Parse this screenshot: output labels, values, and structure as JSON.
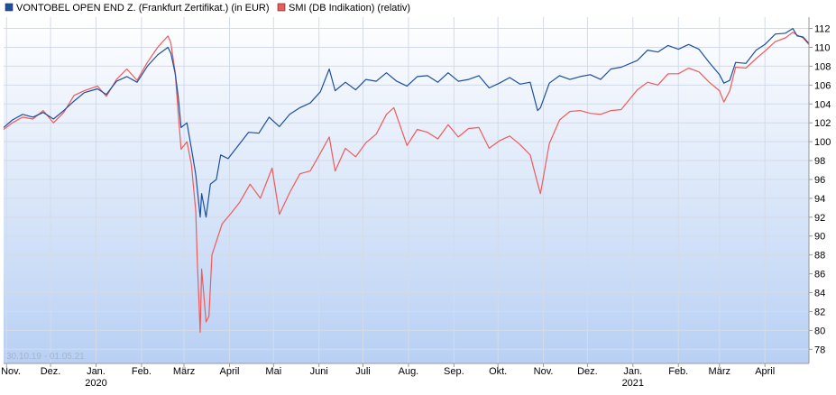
{
  "chart_data": {
    "type": "line",
    "legend": [
      {
        "name": "VONTOBEL OPEN END Z. (Frankfurt Zertifikat.) (in EUR)",
        "color": "#1c4fa1"
      },
      {
        "name": "SMI (DB Indikation) (relativ)",
        "color": "#f05a5a"
      }
    ],
    "date_range": "30.10.19 - 01.05.21",
    "ylim": [
      76.5,
      113.2
    ],
    "yticks": [
      78,
      80,
      82,
      84,
      86,
      88,
      90,
      92,
      94,
      96,
      98,
      100,
      102,
      104,
      106,
      108,
      110,
      112
    ],
    "xlim": [
      "2019-10-30",
      "2021-05-01"
    ],
    "xticks": [
      {
        "label": "Nov.",
        "date": "2019-11-01"
      },
      {
        "label": "Dez.",
        "date": "2019-12-01"
      },
      {
        "label": "Jan.",
        "date": "2020-01-01",
        "year": "2020"
      },
      {
        "label": "Feb.",
        "date": "2020-02-01"
      },
      {
        "label": "März",
        "date": "2020-03-01"
      },
      {
        "label": "April",
        "date": "2020-04-01"
      },
      {
        "label": "Mai",
        "date": "2020-05-01"
      },
      {
        "label": "Juni",
        "date": "2020-06-01"
      },
      {
        "label": "Juli",
        "date": "2020-07-01"
      },
      {
        "label": "Aug.",
        "date": "2020-08-01"
      },
      {
        "label": "Sep.",
        "date": "2020-09-01"
      },
      {
        "label": "Okt.",
        "date": "2020-10-01"
      },
      {
        "label": "Nov.",
        "date": "2020-11-01"
      },
      {
        "label": "Dez.",
        "date": "2020-12-01"
      },
      {
        "label": "Jan.",
        "date": "2021-01-01",
        "year": "2021"
      },
      {
        "label": "Feb.",
        "date": "2021-02-01"
      },
      {
        "label": "März",
        "date": "2021-03-01"
      },
      {
        "label": "April",
        "date": "2021-04-01"
      }
    ],
    "series": [
      {
        "name": "VONTOBEL OPEN END Z. (Frankfurt Zertifikat.) (in EUR)",
        "color": "#1c4fa1",
        "points": [
          [
            "2019-10-30",
            101.5
          ],
          [
            "2019-11-05",
            102.3
          ],
          [
            "2019-11-12",
            102.9
          ],
          [
            "2019-11-19",
            102.6
          ],
          [
            "2019-11-26",
            103.1
          ],
          [
            "2019-12-03",
            102.4
          ],
          [
            "2019-12-10",
            103.3
          ],
          [
            "2019-12-17",
            104.3
          ],
          [
            "2019-12-24",
            105.2
          ],
          [
            "2020-01-02",
            105.6
          ],
          [
            "2020-01-08",
            105.0
          ],
          [
            "2020-01-15",
            106.4
          ],
          [
            "2020-01-22",
            106.9
          ],
          [
            "2020-01-29",
            106.3
          ],
          [
            "2020-02-05",
            108.0
          ],
          [
            "2020-02-12",
            109.2
          ],
          [
            "2020-02-19",
            110.0
          ],
          [
            "2020-02-21",
            109.4
          ],
          [
            "2020-02-24",
            107.2
          ],
          [
            "2020-02-26",
            104.8
          ],
          [
            "2020-02-28",
            101.5
          ],
          [
            "2020-03-03",
            102.0
          ],
          [
            "2020-03-06",
            99.3
          ],
          [
            "2020-03-09",
            96.5
          ],
          [
            "2020-03-12",
            92.0
          ],
          [
            "2020-03-13",
            94.5
          ],
          [
            "2020-03-16",
            92.0
          ],
          [
            "2020-03-19",
            95.5
          ],
          [
            "2020-03-23",
            96.0
          ],
          [
            "2020-03-26",
            98.6
          ],
          [
            "2020-03-31",
            98.2
          ],
          [
            "2020-04-07",
            99.6
          ],
          [
            "2020-04-14",
            101.0
          ],
          [
            "2020-04-21",
            100.9
          ],
          [
            "2020-04-28",
            102.6
          ],
          [
            "2020-05-05",
            101.6
          ],
          [
            "2020-05-12",
            102.9
          ],
          [
            "2020-05-19",
            103.6
          ],
          [
            "2020-05-26",
            104.1
          ],
          [
            "2020-06-02",
            105.3
          ],
          [
            "2020-06-08",
            107.7
          ],
          [
            "2020-06-12",
            105.4
          ],
          [
            "2020-06-19",
            106.3
          ],
          [
            "2020-06-26",
            105.5
          ],
          [
            "2020-07-03",
            106.6
          ],
          [
            "2020-07-10",
            106.4
          ],
          [
            "2020-07-17",
            107.3
          ],
          [
            "2020-07-24",
            106.4
          ],
          [
            "2020-07-31",
            105.9
          ],
          [
            "2020-08-07",
            106.9
          ],
          [
            "2020-08-14",
            107.0
          ],
          [
            "2020-08-21",
            106.3
          ],
          [
            "2020-08-28",
            107.3
          ],
          [
            "2020-09-04",
            106.4
          ],
          [
            "2020-09-11",
            106.6
          ],
          [
            "2020-09-18",
            107.0
          ],
          [
            "2020-09-25",
            105.7
          ],
          [
            "2020-10-02",
            106.2
          ],
          [
            "2020-10-09",
            106.8
          ],
          [
            "2020-10-16",
            106.1
          ],
          [
            "2020-10-23",
            106.3
          ],
          [
            "2020-10-28",
            103.3
          ],
          [
            "2020-10-30",
            103.6
          ],
          [
            "2020-11-05",
            106.2
          ],
          [
            "2020-11-12",
            107.0
          ],
          [
            "2020-11-19",
            106.6
          ],
          [
            "2020-11-26",
            106.9
          ],
          [
            "2020-12-03",
            107.1
          ],
          [
            "2020-12-10",
            106.6
          ],
          [
            "2020-12-17",
            107.7
          ],
          [
            "2020-12-24",
            107.9
          ],
          [
            "2021-01-04",
            108.6
          ],
          [
            "2021-01-11",
            109.7
          ],
          [
            "2021-01-18",
            109.5
          ],
          [
            "2021-01-25",
            110.2
          ],
          [
            "2021-02-01",
            109.8
          ],
          [
            "2021-02-08",
            110.3
          ],
          [
            "2021-02-15",
            109.8
          ],
          [
            "2021-02-22",
            108.4
          ],
          [
            "2021-03-01",
            107.1
          ],
          [
            "2021-03-04",
            106.2
          ],
          [
            "2021-03-08",
            106.5
          ],
          [
            "2021-03-12",
            108.4
          ],
          [
            "2021-03-19",
            108.3
          ],
          [
            "2021-03-26",
            109.7
          ],
          [
            "2021-04-01",
            110.3
          ],
          [
            "2021-04-08",
            111.4
          ],
          [
            "2021-04-15",
            111.5
          ],
          [
            "2021-04-20",
            112.0
          ],
          [
            "2021-04-23",
            111.2
          ],
          [
            "2021-04-27",
            111.1
          ],
          [
            "2021-05-01",
            110.4
          ]
        ]
      },
      {
        "name": "SMI (DB Indikation) (relativ)",
        "color": "#f05a5a",
        "points": [
          [
            "2019-10-30",
            101.3
          ],
          [
            "2019-11-05",
            102.0
          ],
          [
            "2019-11-12",
            102.6
          ],
          [
            "2019-11-19",
            102.4
          ],
          [
            "2019-11-26",
            103.3
          ],
          [
            "2019-12-03",
            102.0
          ],
          [
            "2019-12-10",
            103.1
          ],
          [
            "2019-12-17",
            104.9
          ],
          [
            "2019-12-24",
            105.4
          ],
          [
            "2020-01-02",
            105.9
          ],
          [
            "2020-01-08",
            104.8
          ],
          [
            "2020-01-15",
            106.6
          ],
          [
            "2020-01-22",
            107.7
          ],
          [
            "2020-01-29",
            106.5
          ],
          [
            "2020-02-05",
            108.4
          ],
          [
            "2020-02-12",
            110.0
          ],
          [
            "2020-02-19",
            111.2
          ],
          [
            "2020-02-21",
            110.5
          ],
          [
            "2020-02-24",
            107.3
          ],
          [
            "2020-02-26",
            103.0
          ],
          [
            "2020-02-28",
            99.2
          ],
          [
            "2020-03-03",
            100.0
          ],
          [
            "2020-03-06",
            97.6
          ],
          [
            "2020-03-09",
            92.6
          ],
          [
            "2020-03-10",
            87.5
          ],
          [
            "2020-03-12",
            79.8
          ],
          [
            "2020-03-13",
            86.5
          ],
          [
            "2020-03-16",
            80.9
          ],
          [
            "2020-03-18",
            81.5
          ],
          [
            "2020-03-20",
            88.0
          ],
          [
            "2020-03-24",
            89.9
          ],
          [
            "2020-03-27",
            91.3
          ],
          [
            "2020-04-02",
            92.4
          ],
          [
            "2020-04-08",
            93.6
          ],
          [
            "2020-04-15",
            95.5
          ],
          [
            "2020-04-22",
            94.0
          ],
          [
            "2020-04-30",
            97.2
          ],
          [
            "2020-05-05",
            92.3
          ],
          [
            "2020-05-12",
            94.6
          ],
          [
            "2020-05-19",
            96.6
          ],
          [
            "2020-05-26",
            96.9
          ],
          [
            "2020-06-02",
            98.8
          ],
          [
            "2020-06-08",
            100.5
          ],
          [
            "2020-06-12",
            96.9
          ],
          [
            "2020-06-19",
            99.3
          ],
          [
            "2020-06-26",
            98.4
          ],
          [
            "2020-07-03",
            99.9
          ],
          [
            "2020-07-10",
            100.8
          ],
          [
            "2020-07-17",
            102.9
          ],
          [
            "2020-07-22",
            103.6
          ],
          [
            "2020-07-31",
            99.6
          ],
          [
            "2020-08-07",
            101.3
          ],
          [
            "2020-08-14",
            101.0
          ],
          [
            "2020-08-21",
            100.3
          ],
          [
            "2020-08-28",
            101.8
          ],
          [
            "2020-09-04",
            100.5
          ],
          [
            "2020-09-11",
            101.4
          ],
          [
            "2020-09-18",
            101.5
          ],
          [
            "2020-09-25",
            99.3
          ],
          [
            "2020-10-02",
            100.1
          ],
          [
            "2020-10-09",
            100.6
          ],
          [
            "2020-10-16",
            99.7
          ],
          [
            "2020-10-23",
            98.6
          ],
          [
            "2020-10-28",
            95.6
          ],
          [
            "2020-10-30",
            94.5
          ],
          [
            "2020-11-05",
            99.8
          ],
          [
            "2020-11-12",
            102.3
          ],
          [
            "2020-11-19",
            103.2
          ],
          [
            "2020-11-26",
            103.3
          ],
          [
            "2020-12-03",
            103.0
          ],
          [
            "2020-12-10",
            102.9
          ],
          [
            "2020-12-17",
            103.3
          ],
          [
            "2020-12-24",
            103.4
          ],
          [
            "2021-01-04",
            105.5
          ],
          [
            "2021-01-11",
            106.3
          ],
          [
            "2021-01-18",
            106.0
          ],
          [
            "2021-01-25",
            107.2
          ],
          [
            "2021-02-01",
            107.2
          ],
          [
            "2021-02-08",
            107.8
          ],
          [
            "2021-02-15",
            107.4
          ],
          [
            "2021-02-22",
            106.3
          ],
          [
            "2021-03-01",
            105.4
          ],
          [
            "2021-03-04",
            104.2
          ],
          [
            "2021-03-08",
            105.4
          ],
          [
            "2021-03-12",
            107.9
          ],
          [
            "2021-03-19",
            107.8
          ],
          [
            "2021-03-26",
            108.8
          ],
          [
            "2021-04-01",
            109.6
          ],
          [
            "2021-04-08",
            110.6
          ],
          [
            "2021-04-15",
            111.0
          ],
          [
            "2021-04-20",
            111.6
          ],
          [
            "2021-04-23",
            111.3
          ],
          [
            "2021-04-27",
            111.0
          ],
          [
            "2021-05-01",
            110.3
          ]
        ]
      }
    ]
  }
}
